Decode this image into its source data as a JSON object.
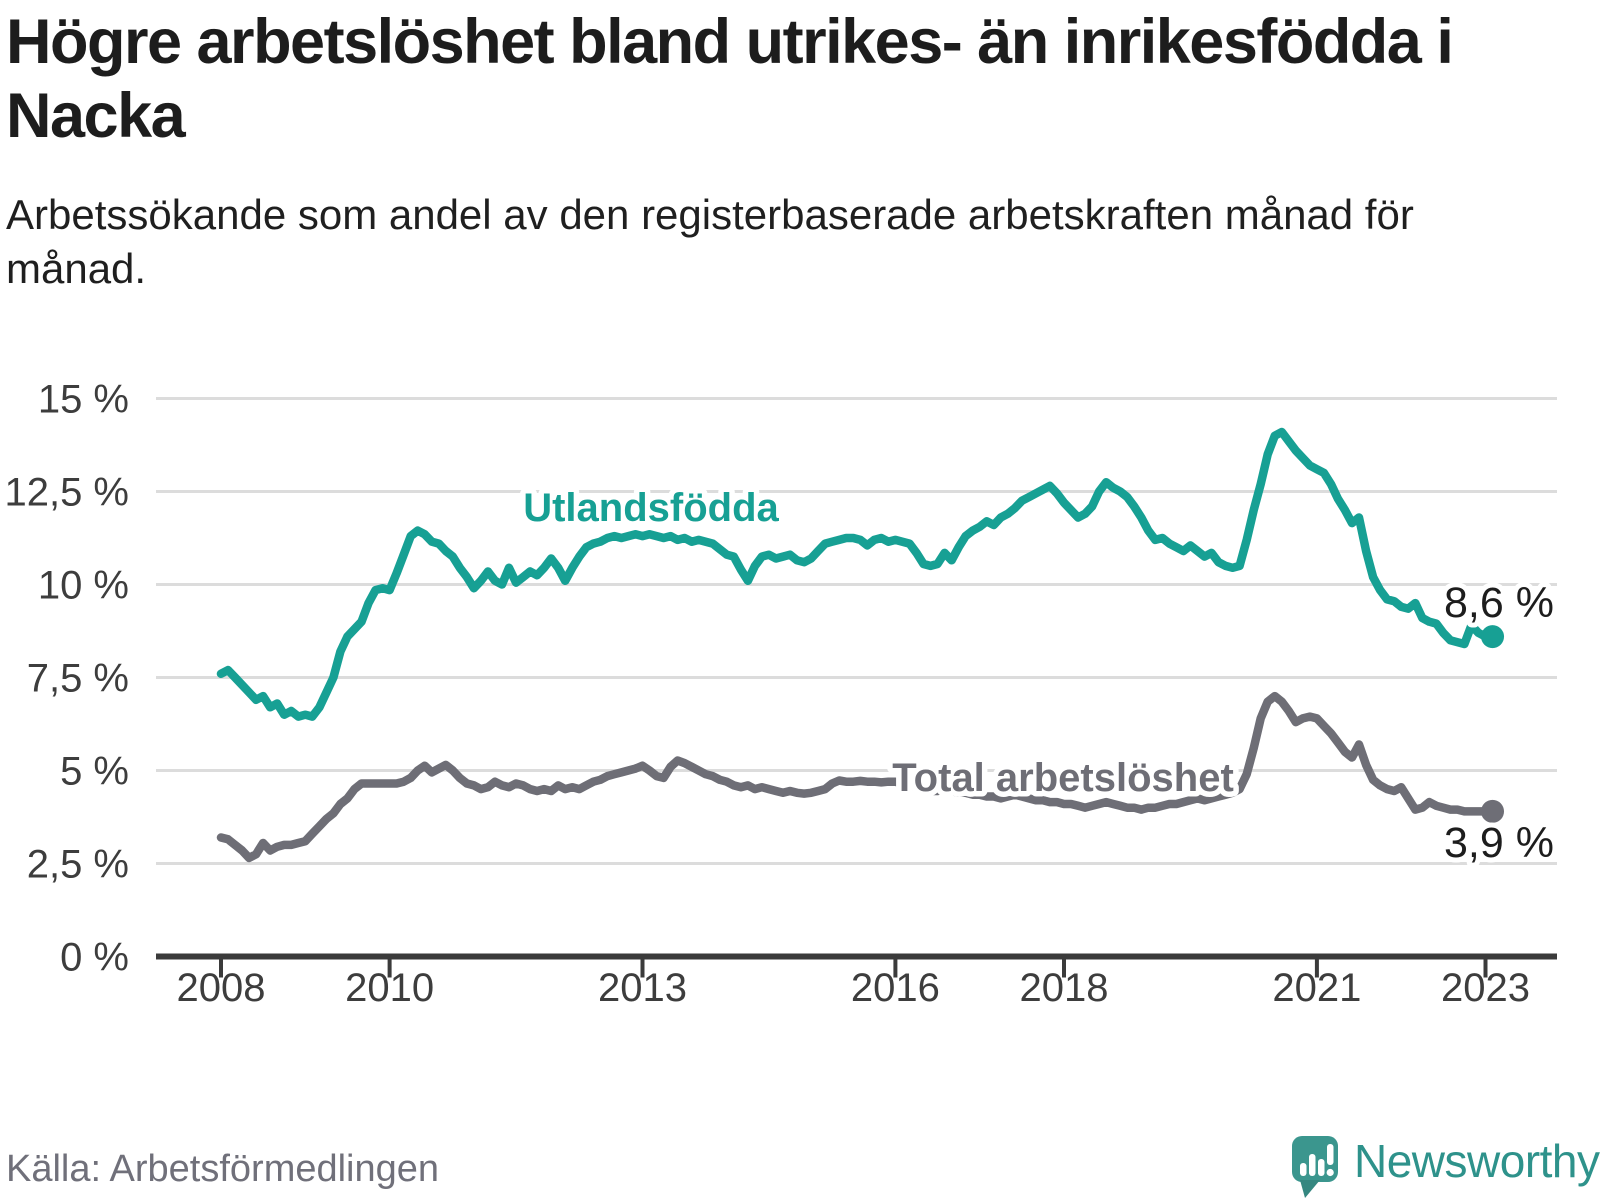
{
  "header": {
    "title": "Högre arbetslöshet bland utrikes- än inrikesfödda i Nacka",
    "subtitle": "Arbetssökande som andel av den registerbaserade arbetskraften månad för månad."
  },
  "footer": {
    "source": "Källa: Arbetsförmedlingen",
    "brand": "Newsworthy"
  },
  "colors": {
    "title_text": "#1d1d1d",
    "axis_line": "#3b3b3b",
    "tick_label": "#3d3d3d",
    "grid_line": "#dcdcdc",
    "series_foreign": "#17a094",
    "series_total": "#6e6e76",
    "value_label": "#1d1d1d",
    "halo": "#ffffff",
    "source_text": "#70707a",
    "logo_teal": "#3b968e",
    "logo_text_teal": "#2e928b"
  },
  "chart_data": {
    "type": "line",
    "title": "Högre arbetslöshet bland utrikes- än inrikesfödda i Nacka",
    "subtitle": "Arbetssökande som andel av den registerbaserade arbetskraften månad för månad.",
    "xlabel": "",
    "ylabel": "",
    "grid": true,
    "legend_position": "inline-labels",
    "x_start": 2008.0,
    "points_per_year": 12,
    "xlim": [
      2007.2,
      2023.6
    ],
    "ylim": [
      0,
      15.5
    ],
    "x_ticks": {
      "values": [
        2008,
        2010,
        2013,
        2016,
        2018,
        2021,
        2023
      ],
      "labels": [
        "2008",
        "2010",
        "2013",
        "2016",
        "2018",
        "2021",
        "2023"
      ]
    },
    "y_ticks": {
      "values": [
        0,
        2.5,
        5,
        7.5,
        10,
        12.5,
        15
      ],
      "labels": [
        "0 %",
        "2,5 %",
        "5 %",
        "7,5 %",
        "10 %",
        "12,5 %",
        "15 %"
      ]
    },
    "series": [
      {
        "name": "Utlandsfödda",
        "color": "#17a094",
        "end_label": "8,6 %",
        "end_value": 8.6,
        "values": [
          7.6,
          7.7,
          7.5,
          7.3,
          7.1,
          6.9,
          7.0,
          6.7,
          6.8,
          6.5,
          6.6,
          6.45,
          6.5,
          6.45,
          6.7,
          7.1,
          7.5,
          8.2,
          8.6,
          8.8,
          9.0,
          9.5,
          9.85,
          9.9,
          9.85,
          10.3,
          10.8,
          11.3,
          11.45,
          11.35,
          11.15,
          11.1,
          10.9,
          10.75,
          10.45,
          10.2,
          9.9,
          10.1,
          10.35,
          10.1,
          10.0,
          10.45,
          10.05,
          10.2,
          10.35,
          10.25,
          10.45,
          10.7,
          10.45,
          10.1,
          10.45,
          10.75,
          11.0,
          11.1,
          11.15,
          11.25,
          11.3,
          11.25,
          11.3,
          11.35,
          11.3,
          11.35,
          11.3,
          11.25,
          11.3,
          11.2,
          11.25,
          11.15,
          11.2,
          11.15,
          11.1,
          10.95,
          10.8,
          10.75,
          10.4,
          10.1,
          10.5,
          10.75,
          10.8,
          10.7,
          10.75,
          10.8,
          10.65,
          10.6,
          10.7,
          10.9,
          11.1,
          11.15,
          11.2,
          11.25,
          11.25,
          11.2,
          11.05,
          11.2,
          11.25,
          11.15,
          11.2,
          11.15,
          11.1,
          10.85,
          10.55,
          10.5,
          10.55,
          10.85,
          10.65,
          11.0,
          11.3,
          11.45,
          11.55,
          11.7,
          11.6,
          11.8,
          11.9,
          12.05,
          12.25,
          12.35,
          12.45,
          12.55,
          12.65,
          12.45,
          12.2,
          12.0,
          11.8,
          11.9,
          12.1,
          12.5,
          12.75,
          12.6,
          12.5,
          12.35,
          12.1,
          11.8,
          11.45,
          11.2,
          11.25,
          11.1,
          11.0,
          10.9,
          11.05,
          10.9,
          10.75,
          10.85,
          10.6,
          10.5,
          10.45,
          10.5,
          11.2,
          12.0,
          12.7,
          13.5,
          14.0,
          14.1,
          13.85,
          13.6,
          13.4,
          13.2,
          13.1,
          13.0,
          12.7,
          12.3,
          12.0,
          11.65,
          11.8,
          10.9,
          10.2,
          9.85,
          9.6,
          9.55,
          9.4,
          9.35,
          9.5,
          9.1,
          9.0,
          8.95,
          8.7,
          8.5,
          8.45,
          8.4,
          8.9,
          8.7,
          8.6,
          8.6
        ]
      },
      {
        "name": "Total arbetslöshet",
        "color": "#6e6e76",
        "end_label": "3,9 %",
        "end_value": 3.9,
        "values": [
          3.2,
          3.15,
          3.0,
          2.85,
          2.65,
          2.75,
          3.05,
          2.85,
          2.95,
          3.0,
          3.0,
          3.05,
          3.1,
          3.3,
          3.5,
          3.7,
          3.85,
          4.1,
          4.25,
          4.5,
          4.65,
          4.65,
          4.65,
          4.65,
          4.65,
          4.65,
          4.7,
          4.8,
          5.0,
          5.13,
          4.95,
          5.05,
          5.15,
          5.0,
          4.8,
          4.65,
          4.6,
          4.5,
          4.55,
          4.7,
          4.6,
          4.55,
          4.65,
          4.6,
          4.5,
          4.45,
          4.5,
          4.45,
          4.6,
          4.5,
          4.55,
          4.5,
          4.6,
          4.7,
          4.75,
          4.85,
          4.9,
          4.95,
          5.0,
          5.05,
          5.13,
          5.0,
          4.85,
          4.8,
          5.1,
          5.27,
          5.2,
          5.1,
          5.0,
          4.9,
          4.85,
          4.75,
          4.7,
          4.6,
          4.55,
          4.6,
          4.5,
          4.55,
          4.5,
          4.45,
          4.4,
          4.45,
          4.4,
          4.38,
          4.4,
          4.45,
          4.5,
          4.65,
          4.73,
          4.7,
          4.7,
          4.72,
          4.7,
          4.7,
          4.68,
          4.7,
          4.7,
          4.65,
          4.6,
          4.55,
          4.5,
          4.45,
          4.45,
          4.5,
          4.45,
          4.4,
          4.4,
          4.35,
          4.35,
          4.3,
          4.3,
          4.25,
          4.3,
          4.35,
          4.3,
          4.25,
          4.2,
          4.2,
          4.15,
          4.15,
          4.1,
          4.1,
          4.05,
          4.0,
          4.05,
          4.1,
          4.15,
          4.1,
          4.05,
          4.0,
          4.0,
          3.95,
          4.0,
          4.0,
          4.05,
          4.1,
          4.1,
          4.15,
          4.2,
          4.25,
          4.2,
          4.25,
          4.3,
          4.35,
          4.4,
          4.5,
          4.9,
          5.6,
          6.4,
          6.85,
          7.0,
          6.85,
          6.6,
          6.3,
          6.4,
          6.45,
          6.4,
          6.2,
          6.0,
          5.75,
          5.5,
          5.35,
          5.7,
          5.15,
          4.75,
          4.6,
          4.5,
          4.45,
          4.55,
          4.25,
          3.95,
          4.0,
          4.15,
          4.05,
          4.0,
          3.95,
          3.95,
          3.9,
          3.9,
          3.9,
          3.9,
          3.9
        ]
      }
    ]
  }
}
